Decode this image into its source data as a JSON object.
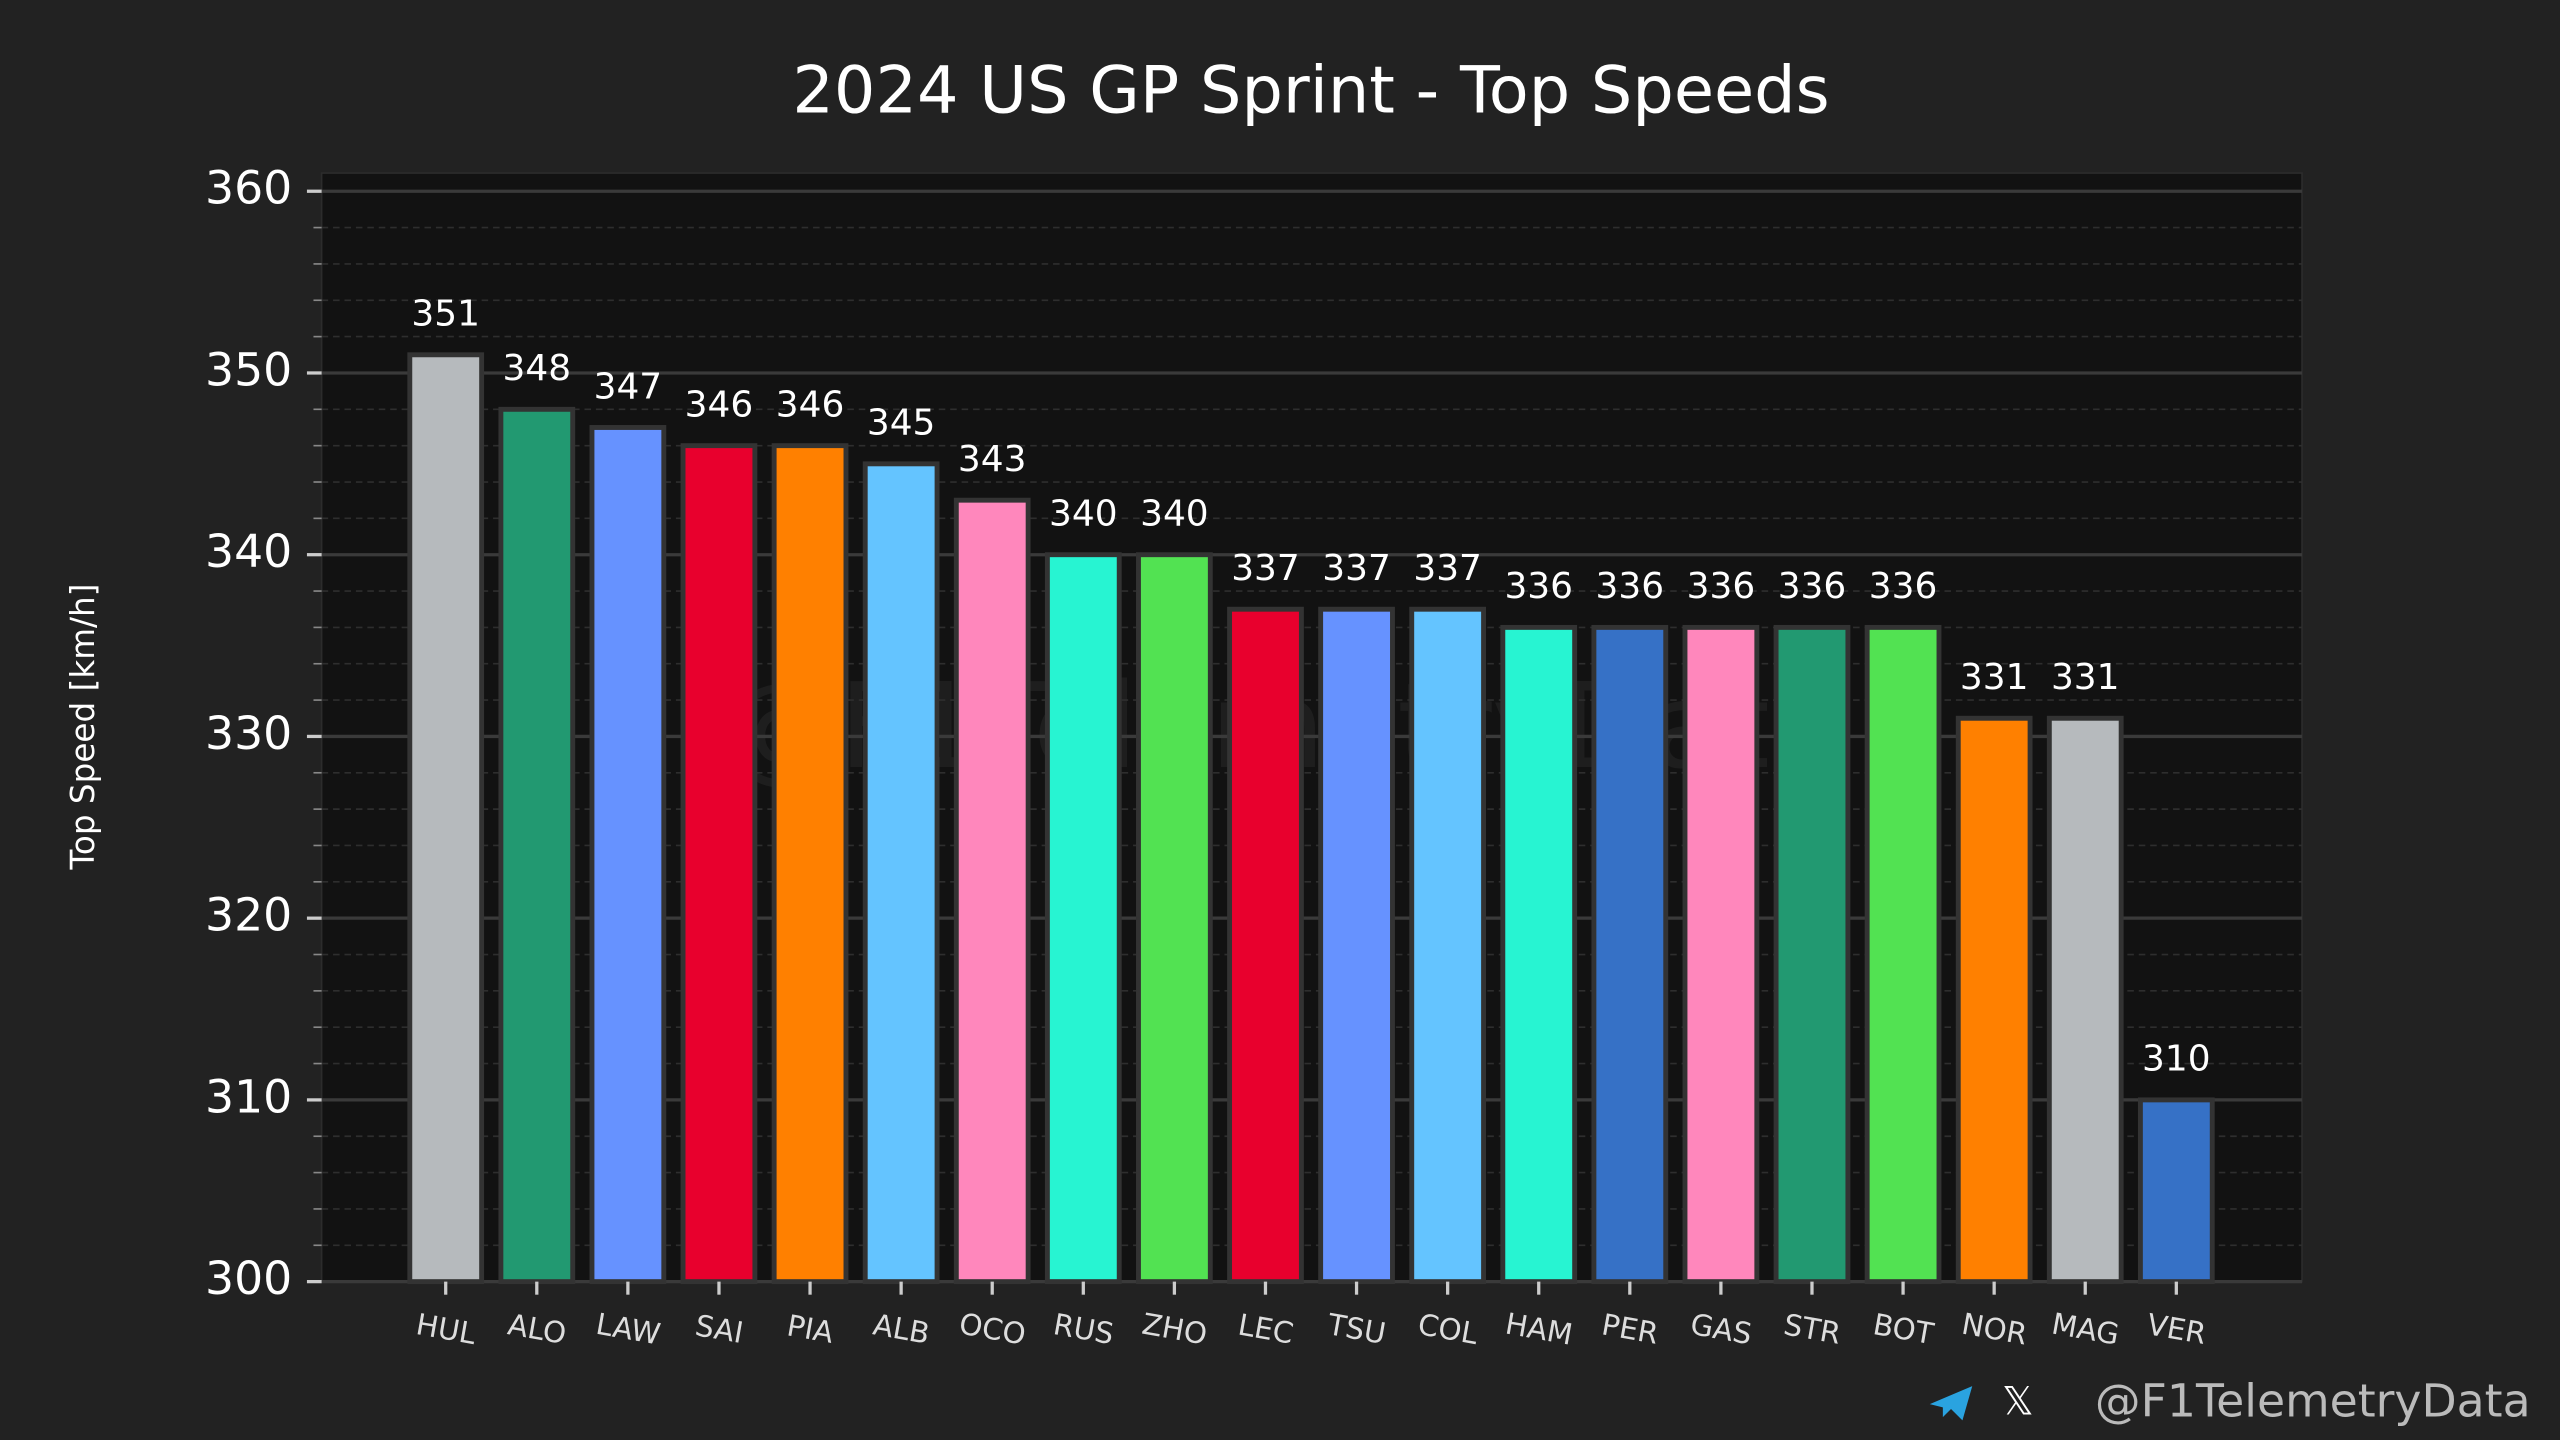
{
  "chart_data": {
    "type": "bar",
    "title": "2024 US GP Sprint - Top Speeds",
    "ylabel": "Top Speed [km/h]",
    "watermark": "@F1TelemetryData",
    "footer": "@F1TelemetryData",
    "categories": [
      "HUL",
      "ALO",
      "LAW",
      "SAI",
      "PIA",
      "ALB",
      "OCO",
      "RUS",
      "ZHO",
      "LEC",
      "TSU",
      "COL",
      "HAM",
      "PER",
      "GAS",
      "STR",
      "BOT",
      "NOR",
      "MAG",
      "VER"
    ],
    "values": [
      351,
      348,
      347,
      346,
      346,
      345,
      343,
      340,
      340,
      337,
      337,
      337,
      336,
      336,
      336,
      336,
      336,
      331,
      331,
      310
    ],
    "colors": [
      "#b6babd",
      "#229971",
      "#6692ff",
      "#e8002d",
      "#ff8000",
      "#64c4ff",
      "#ff87bc",
      "#27f4d2",
      "#52e252",
      "#e8002d",
      "#6692ff",
      "#64c4ff",
      "#27f4d2",
      "#3671c6",
      "#ff87bc",
      "#229971",
      "#52e252",
      "#ff8000",
      "#b6babd",
      "#3671c6"
    ],
    "ylim": [
      300,
      361
    ],
    "yticks": [
      300,
      310,
      320,
      330,
      340,
      350,
      360
    ],
    "minor_yticks": [
      302,
      304,
      306,
      308,
      312,
      314,
      316,
      318,
      322,
      324,
      326,
      328,
      332,
      334,
      336,
      338,
      342,
      344,
      346,
      348,
      352,
      354,
      356,
      358
    ],
    "grid": true
  }
}
